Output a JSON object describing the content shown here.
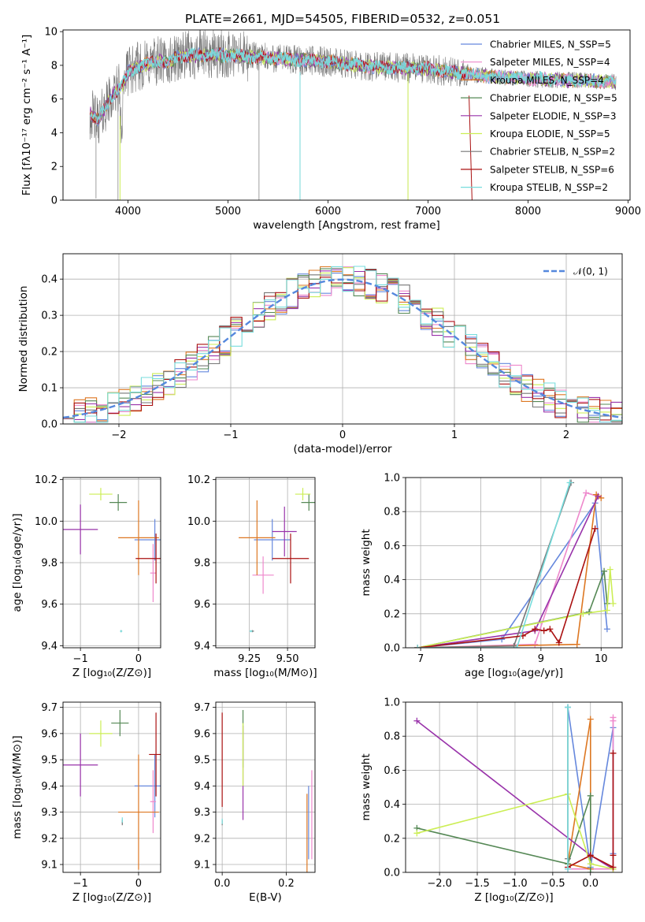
{
  "figure": {
    "title": "PLATE=2661, MJD=54505, FIBERID=0532, z=0.051"
  },
  "chart_data": [
    {
      "id": "spectrum",
      "type": "line",
      "xlabel": "wavelength [Angstrom, rest frame]",
      "ylabel": "Flux [fλ10⁻¹⁷ erg cm⁻² s⁻¹ A⁻¹]",
      "xlim": [
        3350,
        9020
      ],
      "ylim": [
        0,
        10.1
      ],
      "xticks": [
        4000,
        5000,
        6000,
        7000,
        8000,
        9000
      ],
      "yticks": [
        0,
        2,
        4,
        6,
        8,
        10
      ],
      "grid": false,
      "legend": "top-right",
      "legend_entries": [
        "Chabrier MILES, N_SSP=5",
        "Salpeter MILES, N_SSP=4",
        "Kroupa MILES, N_SSP=4",
        "Chabrier ELODIE, N_SSP=5",
        "Salpeter ELODIE, N_SSP=3",
        "Kroupa ELODIE, N_SSP=5",
        "Chabrier STELIB, N_SSP=2",
        "Salpeter STELIB, N_SSP=6",
        "Kroupa STELIB, N_SSP=2"
      ],
      "continuum_anchors": {
        "x": [
          3620,
          3700,
          3800,
          3900,
          3950,
          4000,
          4100,
          4200,
          4300,
          4400,
          4500,
          4700,
          5000,
          5500,
          6000,
          6500,
          7000,
          7500,
          8000,
          8500,
          8900
        ],
        "y": [
          5.2,
          4.7,
          5.8,
          6.6,
          6.9,
          7.6,
          7.9,
          8.1,
          8.3,
          8.1,
          8.5,
          8.6,
          8.6,
          8.4,
          8.2,
          7.9,
          7.8,
          7.4,
          7.2,
          7.1,
          7.0
        ]
      }
    },
    {
      "id": "residuals",
      "type": "histogram",
      "xlabel": "(data-model)/error",
      "ylabel": "Normed distribution",
      "xlim": [
        -2.5,
        2.5
      ],
      "ylim": [
        0,
        0.47
      ],
      "xticks": [
        -2,
        -1,
        0,
        1,
        2
      ],
      "yticks": [
        0.0,
        0.1,
        0.2,
        0.3,
        0.4
      ],
      "grid": true,
      "legend": "top-right",
      "legend_entries": [
        "𝒩(0, 1)"
      ],
      "bin_width": 0.1
    },
    {
      "id": "age-vs-Z",
      "type": "errorbar",
      "xlabel": "Z [log₁₀(Z/Z⊙)]",
      "ylabel": "age  [log₁₀(age/yr)]",
      "xlim": [
        -1.3,
        0.38
      ],
      "ylim": [
        9.39,
        10.21
      ],
      "xticks": [
        -1,
        0
      ],
      "yticks": [
        9.4,
        9.6,
        9.8,
        10.0,
        10.2
      ],
      "grid": true,
      "points": [
        {
          "x": 0.28,
          "y": 9.91,
          "xerr": 0.35,
          "yerr": 0.1
        },
        {
          "x": 0.25,
          "y": 9.75,
          "xerr": 0.05,
          "yerr": 0.14
        },
        {
          "x": 0.0,
          "y": 9.92,
          "xerr": 0.35,
          "yerr": 0.18
        },
        {
          "x": -0.35,
          "y": 10.09,
          "xerr": 0.15,
          "yerr": 0.04
        },
        {
          "x": -1.0,
          "y": 9.96,
          "xerr": 0.3,
          "yerr": 0.12
        },
        {
          "x": -0.65,
          "y": 10.13,
          "xerr": 0.2,
          "yerr": 0.03
        },
        {
          "x": -0.3,
          "y": 9.47,
          "xerr": 0.01,
          "yerr": 0.005
        },
        {
          "x": 0.3,
          "y": 9.82,
          "xerr": 0.35,
          "yerr": 0.12
        },
        {
          "x": -0.3,
          "y": 9.47,
          "xerr": 0.02,
          "yerr": 0.005
        }
      ]
    },
    {
      "id": "age-vs-mass",
      "type": "errorbar",
      "xlabel": "mass [log₁₀(M/M⊙)]",
      "ylabel": "",
      "xlim": [
        9.03,
        9.68
      ],
      "ylim": [
        9.39,
        10.21
      ],
      "xticks": [
        9.25,
        9.5
      ],
      "yticks": [
        9.4,
        9.6,
        9.8,
        10.0,
        10.2
      ],
      "grid": true,
      "points": [
        {
          "x": 9.4,
          "y": 9.91,
          "xerr": 0.12,
          "yerr": 0.1
        },
        {
          "x": 9.34,
          "y": 9.74,
          "xerr": 0.07,
          "yerr": 0.09
        },
        {
          "x": 9.3,
          "y": 9.92,
          "xerr": 0.12,
          "yerr": 0.18
        },
        {
          "x": 9.64,
          "y": 10.09,
          "xerr": 0.05,
          "yerr": 0.04
        },
        {
          "x": 9.48,
          "y": 9.95,
          "xerr": 0.08,
          "yerr": 0.12
        },
        {
          "x": 9.6,
          "y": 10.13,
          "xerr": 0.05,
          "yerr": 0.03
        },
        {
          "x": 9.27,
          "y": 9.47,
          "xerr": 0.01,
          "yerr": 0.005
        },
        {
          "x": 9.52,
          "y": 9.82,
          "xerr": 0.12,
          "yerr": 0.12
        },
        {
          "x": 9.26,
          "y": 9.47,
          "xerr": 0.01,
          "yerr": 0.005
        }
      ]
    },
    {
      "id": "weight-vs-age",
      "type": "line",
      "xlabel": "age  [log₁₀(age/yr)]",
      "ylabel": "mass weight",
      "xlim": [
        6.75,
        10.35
      ],
      "ylim": [
        0,
        1.0
      ],
      "xticks": [
        7,
        8,
        9,
        10
      ],
      "yticks": [
        0.0,
        0.2,
        0.4,
        0.6,
        0.8,
        1.0
      ],
      "grid": true,
      "series": [
        {
          "x": [
            6.95,
            8.35,
            9.9,
            10.1
          ],
          "y": [
            0.0,
            0.05,
            0.85,
            0.11
          ]
        },
        {
          "x": [
            6.95,
            8.9,
            9.75,
            9.95
          ],
          "y": [
            0.0,
            0.02,
            0.91,
            0.89
          ]
        },
        {
          "x": [
            6.95,
            9.6,
            9.92,
            10.0
          ],
          "y": [
            0.0,
            0.02,
            0.9,
            0.88
          ]
        },
        {
          "x": [
            6.95,
            9.8,
            10.05,
            10.1
          ],
          "y": [
            0.0,
            0.21,
            0.45,
            0.26
          ]
        },
        {
          "x": [
            6.95,
            8.9,
            9.95
          ],
          "y": [
            0.0,
            0.1,
            0.89
          ]
        },
        {
          "x": [
            6.95,
            9.7,
            10.1,
            10.15,
            10.2
          ],
          "y": [
            0.0,
            0.2,
            0.22,
            0.46,
            0.26
          ]
        },
        {
          "x": [
            6.95,
            8.55,
            9.5
          ],
          "y": [
            0.0,
            0.01,
            0.97
          ]
        },
        {
          "x": [
            6.95,
            8.7,
            8.9,
            9.05,
            9.15,
            9.3,
            9.9
          ],
          "y": [
            0.0,
            0.07,
            0.11,
            0.1,
            0.11,
            0.03,
            0.7
          ]
        },
        {
          "x": [
            6.95,
            8.6,
            9.48
          ],
          "y": [
            0.0,
            0.0,
            0.97
          ]
        }
      ]
    },
    {
      "id": "mass-vs-Z",
      "type": "errorbar",
      "xlabel": "Z [log₁₀(Z/Z⊙)]",
      "ylabel": "mass [log₁₀(M/M⊙)]",
      "xlim": [
        -1.3,
        0.38
      ],
      "ylim": [
        9.07,
        9.72
      ],
      "xticks": [
        -1,
        0
      ],
      "yticks": [
        9.1,
        9.2,
        9.3,
        9.4,
        9.5,
        9.6,
        9.7
      ],
      "grid": true,
      "points": [
        {
          "x": 0.28,
          "y": 9.4,
          "xerr": 0.35,
          "yerr": 0.12
        },
        {
          "x": 0.25,
          "y": 9.34,
          "xerr": 0.05,
          "yerr": 0.12
        },
        {
          "x": 0.0,
          "y": 9.3,
          "xerr": 0.35,
          "yerr": 0.22
        },
        {
          "x": -0.32,
          "y": 9.64,
          "xerr": 0.15,
          "yerr": 0.05
        },
        {
          "x": -1.0,
          "y": 9.48,
          "xerr": 0.3,
          "yerr": 0.12
        },
        {
          "x": -0.65,
          "y": 9.6,
          "xerr": 0.2,
          "yerr": 0.05
        },
        {
          "x": -0.28,
          "y": 9.26,
          "xerr": 0.01,
          "yerr": 0.01
        },
        {
          "x": 0.3,
          "y": 9.52,
          "xerr": 0.12,
          "yerr": 0.16
        },
        {
          "x": -0.28,
          "y": 9.27,
          "xerr": 0.01,
          "yerr": 0.01
        }
      ]
    },
    {
      "id": "mass-vs-EBV",
      "type": "errorbar",
      "xlabel": "E(B-V)",
      "ylabel": "",
      "xlim": [
        -0.02,
        0.29
      ],
      "ylim": [
        9.07,
        9.72
      ],
      "xticks": [
        0.0,
        0.2
      ],
      "yticks": [
        9.1,
        9.2,
        9.3,
        9.4,
        9.5,
        9.6,
        9.7
      ],
      "grid": true,
      "points": [
        {
          "x": 0.27,
          "y": 9.26,
          "xerr": 0.0,
          "yerr": 0.14
        },
        {
          "x": 0.28,
          "y": 9.29,
          "xerr": 0.0,
          "yerr": 0.17
        },
        {
          "x": 0.265,
          "y": 9.22,
          "xerr": 0.0,
          "yerr": 0.15
        },
        {
          "x": 0.065,
          "y": 9.58,
          "xerr": 0.0,
          "yerr": 0.11
        },
        {
          "x": 0.065,
          "y": 9.45,
          "xerr": 0.0,
          "yerr": 0.18
        },
        {
          "x": 0.065,
          "y": 9.52,
          "xerr": 0.0,
          "yerr": 0.12
        },
        {
          "x": 0.0,
          "y": 9.26,
          "xerr": 0.0,
          "yerr": 0.01
        },
        {
          "x": 0.0,
          "y": 9.5,
          "xerr": 0.0,
          "yerr": 0.18
        },
        {
          "x": 0.0,
          "y": 9.265,
          "xerr": 0.0,
          "yerr": 0.01
        }
      ]
    },
    {
      "id": "weight-vs-Z",
      "type": "line",
      "xlabel": "Z [log₁₀(Z/Z⊙)]",
      "ylabel": "mass weight",
      "xlim": [
        -2.45,
        0.42
      ],
      "ylim": [
        0,
        1.0
      ],
      "xticks": [
        -2.0,
        -1.5,
        -1.0,
        -0.5,
        0.0
      ],
      "yticks": [
        0.0,
        0.2,
        0.4,
        0.6,
        0.8,
        1.0
      ],
      "grid": true,
      "series": [
        {
          "x": [
            -0.3,
            0.0,
            0.3,
            0.3
          ],
          "y": [
            0.97,
            0.03,
            0.85,
            0.11
          ]
        },
        {
          "x": [
            -0.3,
            0.3,
            0.3,
            0.3
          ],
          "y": [
            0.02,
            0.02,
            0.91,
            0.89
          ]
        },
        {
          "x": [
            -0.3,
            0.0,
            0.0,
            -0.3
          ],
          "y": [
            0.05,
            0.9,
            0.02,
            0.05
          ]
        },
        {
          "x": [
            -2.3,
            -0.3,
            0.0,
            0.0
          ],
          "y": [
            0.26,
            0.05,
            0.45,
            0.0
          ]
        },
        {
          "x": [
            -2.3,
            0.0,
            0.3
          ],
          "y": [
            0.89,
            0.1,
            0.02
          ]
        },
        {
          "x": [
            -2.3,
            -0.3,
            0.0,
            0.3
          ],
          "y": [
            0.23,
            0.46,
            0.05,
            0.02
          ]
        },
        {
          "x": [
            -0.3,
            -0.3
          ],
          "y": [
            0.97,
            0.08
          ]
        },
        {
          "x": [
            -0.3,
            0.0,
            0.3,
            0.3,
            0.3
          ],
          "y": [
            0.03,
            0.1,
            0.03,
            0.7,
            0.1
          ]
        },
        {
          "x": [
            -0.3,
            -0.3
          ],
          "y": [
            0.97,
            0.02
          ]
        }
      ]
    }
  ],
  "series_colors": [
    "#6688dd",
    "#ee88cc",
    "#dd7722",
    "#558855",
    "#9933aa",
    "#ccee55",
    "#777777",
    "#aa1111",
    "#77dddd"
  ],
  "gaussian_color": "#5588dd"
}
